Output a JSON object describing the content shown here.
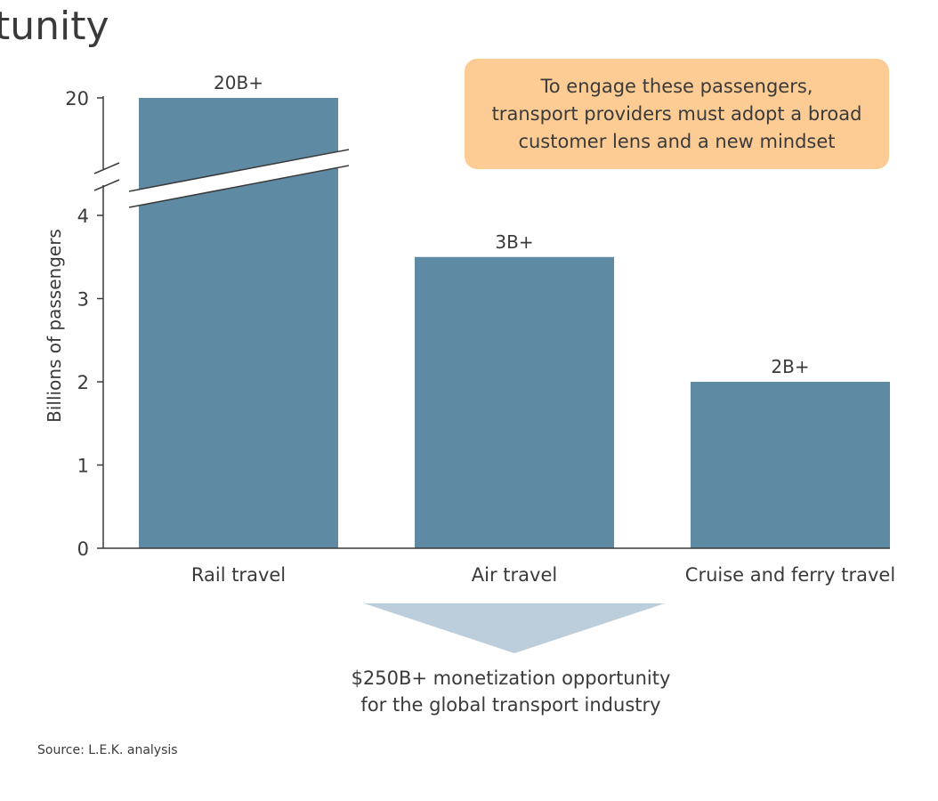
{
  "page": {
    "title": "tunity",
    "callout_lines": [
      "To engage these passengers,",
      "transport providers must adopt a broad",
      "customer lens and a new mindset"
    ],
    "opportunity_lines": [
      "$250B+ monetization opportunity",
      "for the global transport industry"
    ],
    "source": "Source: L.E.K. analysis"
  },
  "colors": {
    "bar": "#5f8aa3",
    "axis": "#3a3a3a",
    "callout": "#fccc94",
    "arrow": "#bccedb"
  },
  "chart_data": {
    "type": "bar",
    "categories": [
      "Rail travel",
      "Air travel",
      "Cruise and ferry travel"
    ],
    "values": [
      20,
      3.5,
      2
    ],
    "data_labels": [
      "20B+",
      "3B+",
      "2B+"
    ],
    "ylabel": "Billions of passengers",
    "yticks": [
      0,
      1,
      2,
      3,
      4,
      20
    ],
    "ylim": [
      0,
      20
    ],
    "axis_break": [
      4.5,
      19
    ],
    "grid": false,
    "legend": "none"
  }
}
